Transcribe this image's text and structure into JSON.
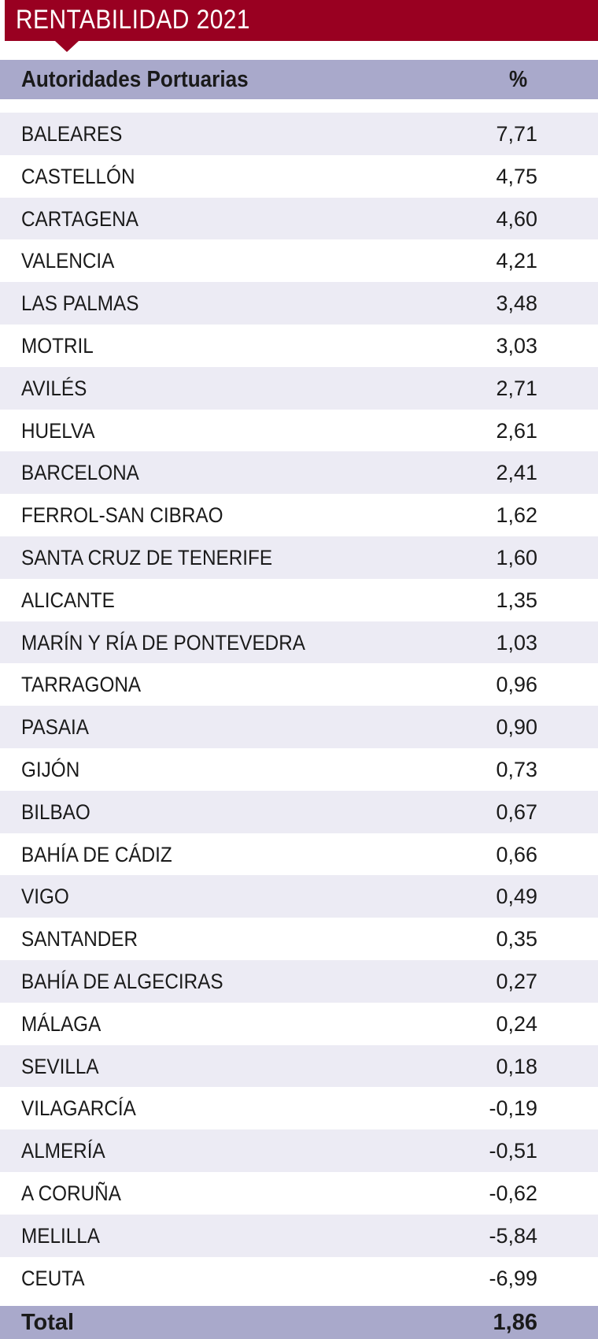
{
  "title": "RENTABILIDAD 2021",
  "colors": {
    "title_bg": "#990021",
    "header_bg": "#a9a9cb",
    "stripe": "#ecebf4"
  },
  "table": {
    "headers": [
      "Autoridades Portuarias",
      "%"
    ],
    "rows": [
      {
        "name": "BALEARES",
        "value": "7,71"
      },
      {
        "name": "CASTELLÓN",
        "value": "4,75"
      },
      {
        "name": "CARTAGENA",
        "value": "4,60"
      },
      {
        "name": "VALENCIA",
        "value": "4,21"
      },
      {
        "name": "LAS PALMAS",
        "value": "3,48"
      },
      {
        "name": "MOTRIL",
        "value": "3,03"
      },
      {
        "name": "AVILÉS",
        "value": "2,71"
      },
      {
        "name": "HUELVA",
        "value": "2,61"
      },
      {
        "name": "BARCELONA",
        "value": "2,41"
      },
      {
        "name": "FERROL-SAN CIBRAO",
        "value": "1,62"
      },
      {
        "name": "SANTA CRUZ DE TENERIFE",
        "value": "1,60"
      },
      {
        "name": "ALICANTE",
        "value": "1,35"
      },
      {
        "name": "MARÍN Y RÍA DE PONTEVEDRA",
        "value": "1,03"
      },
      {
        "name": "TARRAGONA",
        "value": "0,96"
      },
      {
        "name": "PASAIA",
        "value": "0,90"
      },
      {
        "name": "GIJÓN",
        "value": "0,73"
      },
      {
        "name": "BILBAO",
        "value": "0,67"
      },
      {
        "name": "BAHÍA DE CÁDIZ",
        "value": "0,66"
      },
      {
        "name": "VIGO",
        "value": "0,49"
      },
      {
        "name": "SANTANDER",
        "value": "0,35"
      },
      {
        "name": "BAHÍA DE ALGECIRAS",
        "value": "0,27"
      },
      {
        "name": "MÁLAGA",
        "value": "0,24"
      },
      {
        "name": "SEVILLA",
        "value": "0,18"
      },
      {
        "name": "VILAGARCÍA",
        "value": "-0,19"
      },
      {
        "name": "ALMERÍA",
        "value": "-0,51"
      },
      {
        "name": "A CORUÑA",
        "value": "-0,62"
      },
      {
        "name": "MELILLA",
        "value": "-5,84"
      },
      {
        "name": "CEUTA",
        "value": "-6,99"
      }
    ],
    "total": {
      "label": "Total",
      "value": "1,86"
    }
  }
}
